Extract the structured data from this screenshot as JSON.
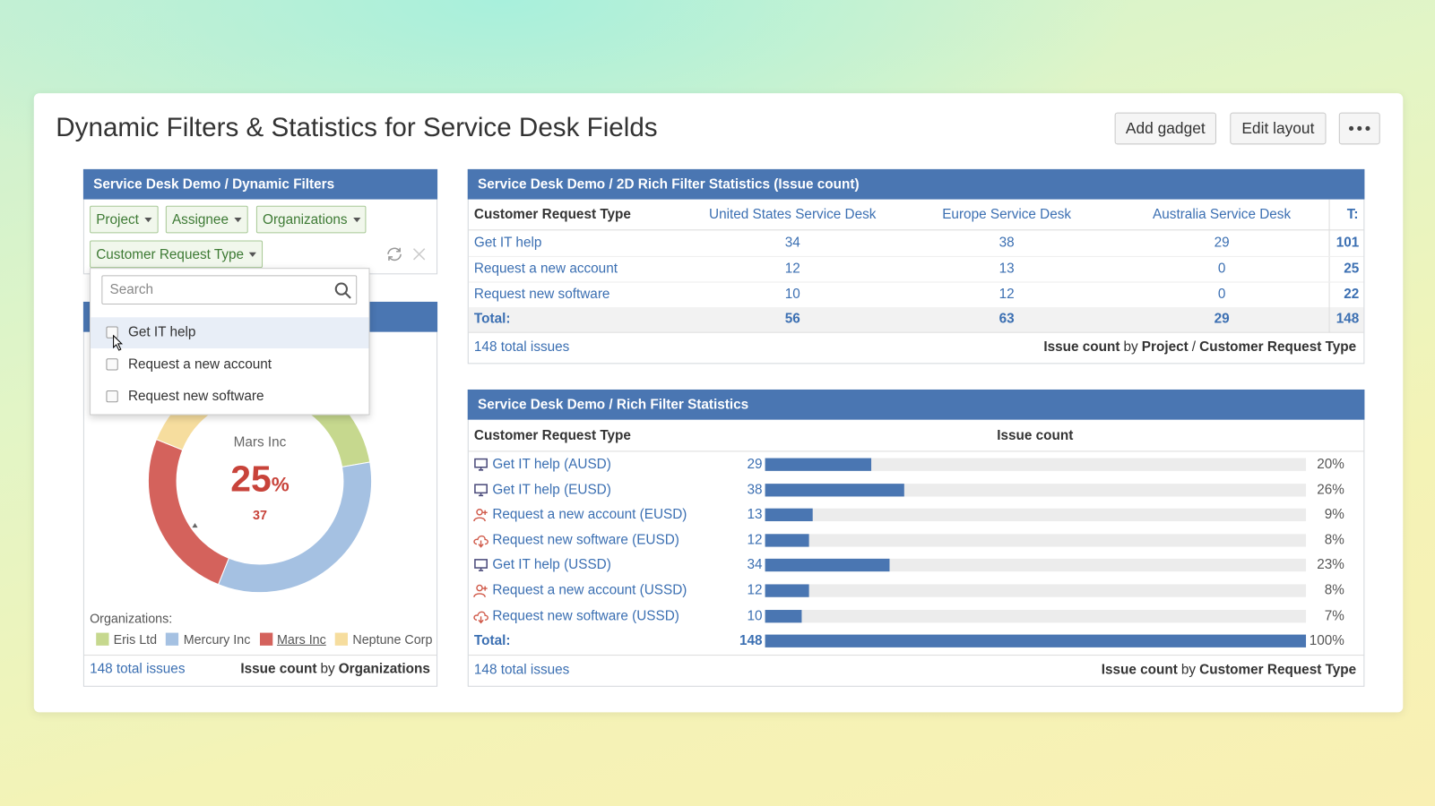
{
  "header": {
    "title": "Dynamic Filters & Statistics for Service Desk Fields",
    "buttons": [
      "Add gadget",
      "Edit layout"
    ]
  },
  "filters_gadget": {
    "title": "Service Desk Demo / Dynamic Filters",
    "filters": [
      "Project",
      "Assignee",
      "Organizations",
      "Customer Request Type"
    ],
    "search_placeholder": "Search",
    "options": [
      "Get IT help",
      "Request a new account",
      "Request new software"
    ]
  },
  "organizations_gadget": {
    "center_label": "Mars Inc",
    "center_value": 25,
    "center_unit": "%",
    "center_count": 37,
    "legend_title": "Organizations:",
    "segments": [
      {
        "name": "Eris Ltd",
        "color": "#c6d88e",
        "value": 33
      },
      {
        "name": "Mercury Inc",
        "color": "#a5c1e2",
        "value": 50
      },
      {
        "name": "Mars Inc",
        "color": "#d4625c",
        "value": 37
      },
      {
        "name": "Neptune Corp",
        "color": "#f6dd9e",
        "value": 28
      }
    ],
    "footer": {
      "total": "148 total issues",
      "measure": "Issue count",
      "by": "by",
      "field": "Organizations"
    }
  },
  "matrix_gadget": {
    "title": "Service Desk Demo / 2D Rich Filter Statistics (Issue count)",
    "columns": [
      "Customer Request Type",
      "United States Service Desk",
      "Europe Service Desk",
      "Australia Service Desk",
      "T:"
    ],
    "rows": [
      [
        "Get IT help",
        34,
        38,
        29,
        101
      ],
      [
        "Request a new account",
        12,
        13,
        0,
        25
      ],
      [
        "Request new software",
        10,
        12,
        0,
        22
      ]
    ],
    "total_row": [
      "Total:",
      56,
      63,
      29,
      148
    ],
    "footer": {
      "total": "148 total issues",
      "measure": "Issue count",
      "by": "by",
      "field1": "Project",
      "separator": "/",
      "field2": "Customer Request Type"
    }
  },
  "stats_gadget": {
    "title": "Service Desk Demo / Rich Filter Statistics",
    "columns": [
      "Customer Request Type",
      "Issue count"
    ],
    "rows": [
      {
        "label": "Get IT help (AUSD)",
        "count": 29,
        "percent": "20%"
      },
      {
        "label": "Get IT help (EUSD)",
        "count": 38,
        "percent": "26%"
      },
      {
        "label": "Request a new account (EUSD)",
        "count": 13,
        "percent": "9%"
      },
      {
        "label": "Request new software (EUSD)",
        "count": 12,
        "percent": "8%"
      },
      {
        "label": "Get IT help (USSD)",
        "count": 34,
        "percent": "23%"
      },
      {
        "label": "Request a new account (USSD)",
        "count": 12,
        "percent": "8%"
      },
      {
        "label": "Request new software (USSD)",
        "count": 10,
        "percent": "7%"
      }
    ],
    "total": {
      "label": "Total:",
      "count": 148,
      "percent": "100%"
    },
    "footer": {
      "total": "148 total issues",
      "measure": "Issue count",
      "by": "by",
      "field": "Customer Request Type"
    }
  }
}
